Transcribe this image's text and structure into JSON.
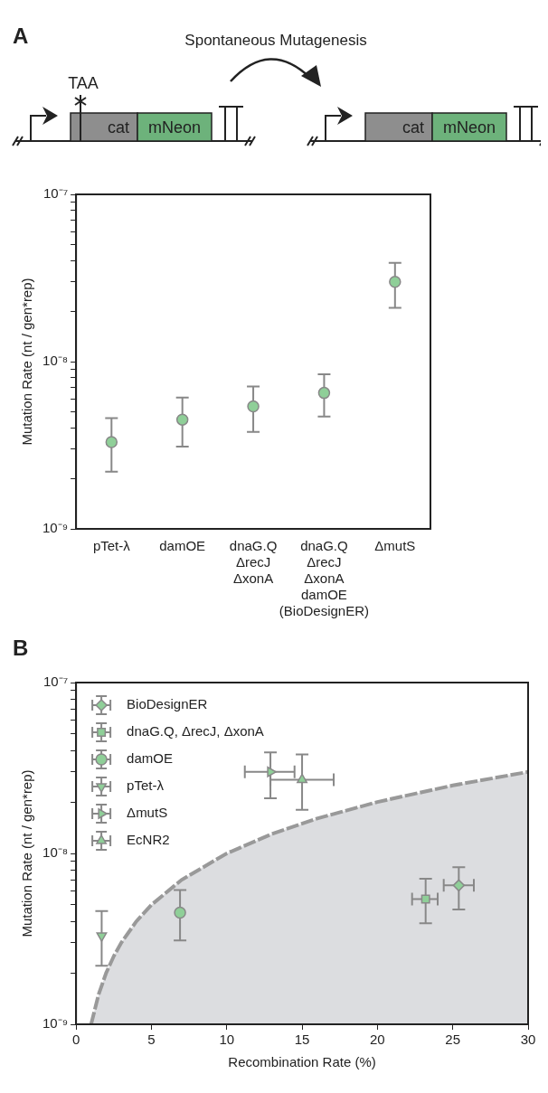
{
  "chart_data": [
    {
      "type": "scatter",
      "annotations": [
        "A",
        "Spontaneous Mutagenesis",
        "TAA",
        "cat",
        "mNeon",
        "cat",
        "mNeon"
      ],
      "categories": [
        "pTet-λ",
        "damOE",
        "dnaG.Q\nΔrecJ\nΔxonA",
        "dnaG.Q\nΔrecJ\nΔxonA\ndamOE\n(BioDesignER)",
        "ΔmutS"
      ],
      "values": [
        3.3e-09,
        4.5e-09,
        5.4e-09,
        6.5e-09,
        3e-08
      ],
      "errors": [
        [
          2.2e-09,
          4.6e-09
        ],
        [
          3.1e-09,
          6.1e-09
        ],
        [
          3.8e-09,
          7.1e-09
        ],
        [
          4.7e-09,
          8.4e-09
        ],
        [
          2.1e-08,
          3.9e-08
        ]
      ],
      "color": "#8fcf98",
      "marker": "circle",
      "ylabel": "Mutation Rate (nt / gen*rep)",
      "log": true,
      "ylim": [
        1e-09,
        1e-07
      ],
      "yticks": [
        {
          "value": 1e-09,
          "label": "10⁻⁹"
        },
        {
          "value": 2e-09,
          "label": null
        },
        {
          "value": 3e-09,
          "label": null
        },
        {
          "value": 4e-09,
          "label": null
        },
        {
          "value": 5e-09,
          "label": null
        },
        {
          "value": 6e-09,
          "label": null
        },
        {
          "value": 7e-09,
          "label": null
        },
        {
          "value": 8e-09,
          "label": null
        },
        {
          "value": 9e-09,
          "label": null
        },
        {
          "value": 1e-08,
          "label": "10⁻⁸"
        },
        {
          "value": 2e-08,
          "label": null
        },
        {
          "value": 3e-08,
          "label": null
        },
        {
          "value": 4e-08,
          "label": null
        },
        {
          "value": 5e-08,
          "label": null
        },
        {
          "value": 6e-08,
          "label": null
        },
        {
          "value": 7e-08,
          "label": null
        },
        {
          "value": 8e-08,
          "label": null
        },
        {
          "value": 9e-08,
          "label": null
        },
        {
          "value": 1e-07,
          "label": "10⁻⁷"
        }
      ]
    },
    {
      "type": "scatter",
      "annotations": [
        "B"
      ],
      "xlabel": "Recombination Rate (%)",
      "ylabel": "Mutation Rate (nt / gen*rep)",
      "log": "y",
      "legend": "top left",
      "xlim": [
        0,
        30
      ],
      "xticks": [
        0,
        5,
        10,
        15,
        20,
        25,
        30
      ],
      "ylim": [
        1e-09,
        1e-07
      ],
      "yticks": [
        {
          "value": 1e-09,
          "label": "10⁻⁹"
        },
        {
          "value": 2e-09,
          "label": null
        },
        {
          "value": 3e-09,
          "label": null
        },
        {
          "value": 4e-09,
          "label": null
        },
        {
          "value": 5e-09,
          "label": null
        },
        {
          "value": 6e-09,
          "label": null
        },
        {
          "value": 7e-09,
          "label": null
        },
        {
          "value": 8e-09,
          "label": null
        },
        {
          "value": 9e-09,
          "label": null
        },
        {
          "value": 1e-08,
          "label": "10⁻⁸"
        },
        {
          "value": 2e-08,
          "label": null
        },
        {
          "value": 3e-08,
          "label": null
        },
        {
          "value": 4e-08,
          "label": null
        },
        {
          "value": 5e-08,
          "label": null
        },
        {
          "value": 6e-08,
          "label": null
        },
        {
          "value": 7e-08,
          "label": null
        },
        {
          "value": 8e-08,
          "label": null
        },
        {
          "value": 9e-08,
          "label": null
        },
        {
          "value": 1e-07,
          "label": "10⁻⁷"
        }
      ],
      "series": [
        {
          "type": "area",
          "color": "#999999",
          "line_style": "dashed",
          "x": [
            1,
            1.5,
            2,
            2.5,
            3,
            4,
            5,
            7,
            10,
            13,
            16,
            20,
            25,
            30
          ],
          "values": [
            1e-09,
            1.5e-09,
            2e-09,
            2.5e-09,
            3e-09,
            4e-09,
            5e-09,
            7e-09,
            1e-08,
            1.3e-08,
            1.6e-08,
            2e-08,
            2.5e-08,
            3e-08
          ]
        },
        {
          "name": "BioDesignER",
          "color": "#8fcf98",
          "marker": "diamond",
          "x": [
            25.4
          ],
          "values": [
            6.5e-09
          ],
          "errors": [
            [
              4.7e-09,
              8.3e-09
            ]
          ],
          "xerrors": [
            [
              24.4,
              26.4
            ]
          ]
        },
        {
          "name": "dnaG.Q, ΔrecJ, ΔxonA",
          "color": "#8fcf98",
          "marker": "square",
          "x": [
            23.2
          ],
          "values": [
            5.4e-09
          ],
          "errors": [
            [
              3.9e-09,
              7.1e-09
            ]
          ],
          "xerrors": [
            [
              22.3,
              24.0
            ]
          ]
        },
        {
          "name": "damOE",
          "color": "#8fcf98",
          "marker": "circle",
          "x": [
            6.9
          ],
          "values": [
            4.5e-09
          ],
          "errors": [
            [
              3.1e-09,
              6.1e-09
            ]
          ]
        },
        {
          "name": "pTet-λ",
          "color": "#8fcf98",
          "marker": "triangle-down",
          "x": [
            1.7
          ],
          "values": [
            3.3e-09
          ],
          "errors": [
            [
              2.2e-09,
              4.6e-09
            ]
          ]
        },
        {
          "name": "ΔmutS",
          "color": "#8fcf98",
          "marker": "triangle-right",
          "x": [
            12.9
          ],
          "values": [
            3e-08
          ],
          "errors": [
            [
              2.1e-08,
              3.9e-08
            ]
          ],
          "xerrors": [
            [
              11.2,
              14.5
            ]
          ]
        },
        {
          "name": "EcNR2",
          "color": "#8fcf98",
          "marker": "triangle",
          "x": [
            15.0
          ],
          "values": [
            2.7e-08
          ],
          "errors": [
            [
              1.8e-08,
              3.8e-08
            ]
          ],
          "xerrors": [
            [
              12.9,
              17.1
            ]
          ]
        }
      ]
    }
  ]
}
